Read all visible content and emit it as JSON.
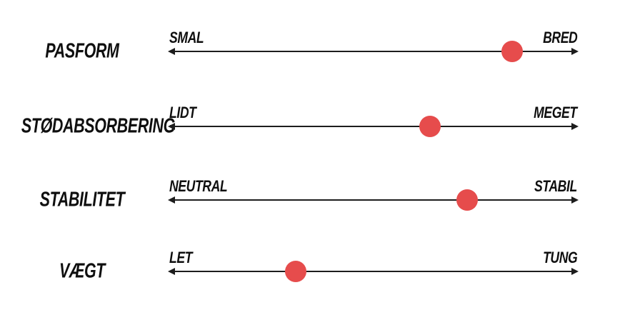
{
  "chart_data": {
    "type": "scatter",
    "description": "Four horizontal attribute scales with a single red marker dot on each double-headed arrow",
    "marker_color": "#e64c4c",
    "line_color": "#1d1d1d",
    "background": "#ffffff",
    "value_range": [
      0,
      100
    ],
    "rows": [
      {
        "label": "PASFORM",
        "left_end": "SMAL",
        "right_end": "BRED",
        "value_percent": 84
      },
      {
        "label": "STØDABSORBERING",
        "left_end": "LIDT",
        "right_end": "MEGET",
        "value_percent": 64
      },
      {
        "label": "STABILITET",
        "left_end": "NEUTRAL",
        "right_end": "STABIL",
        "value_percent": 73
      },
      {
        "label": "VÆGT",
        "left_end": "LET",
        "right_end": "TUNG",
        "value_percent": 31
      }
    ]
  }
}
